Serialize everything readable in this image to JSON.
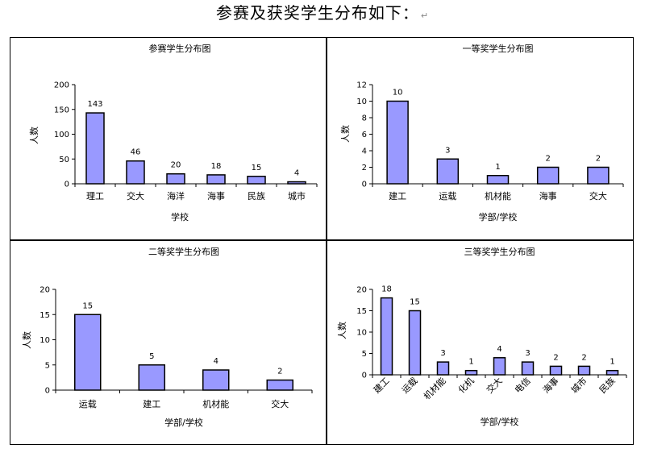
{
  "page": {
    "heading": "参赛及获奖学生分布如下：",
    "return_mark": "↵"
  },
  "colors": {
    "bar_fill": "#9999ff",
    "bar_stroke": "#000000"
  },
  "chart_data": [
    {
      "type": "bar",
      "title": "参赛学生分布图",
      "xlabel": "学校",
      "ylabel": "人数",
      "categories": [
        "理工",
        "交大",
        "海洋",
        "海事",
        "民族",
        "城市"
      ],
      "values": [
        143,
        46,
        20,
        18,
        15,
        4
      ],
      "ylim": [
        0,
        200
      ],
      "yticks": [
        0,
        50,
        100,
        150,
        200
      ],
      "grid": false,
      "legend": "none"
    },
    {
      "type": "bar",
      "title": "一等奖学生分布图",
      "xlabel": "学部/学校",
      "ylabel": "人数",
      "categories": [
        "建工",
        "运载",
        "机材能",
        "海事",
        "交大"
      ],
      "values": [
        10,
        3,
        1,
        2,
        2
      ],
      "ylim": [
        0,
        12
      ],
      "yticks": [
        0,
        2,
        4,
        6,
        8,
        10,
        12
      ],
      "grid": false,
      "legend": "none"
    },
    {
      "type": "bar",
      "title": "二等奖学生分布图",
      "xlabel": "学部/学校",
      "ylabel": "人数",
      "categories": [
        "运载",
        "建工",
        "机材能",
        "交大"
      ],
      "values": [
        15,
        5,
        4,
        2
      ],
      "ylim": [
        0,
        20
      ],
      "yticks": [
        0,
        5,
        10,
        15,
        20
      ],
      "grid": false,
      "legend": "none"
    },
    {
      "type": "bar",
      "title": "三等奖学生分布图",
      "xlabel": "学部/学校",
      "ylabel": "人数",
      "categories": [
        "建工",
        "运载",
        "机材能",
        "化机",
        "交大",
        "电信",
        "海事",
        "城市",
        "民族"
      ],
      "values": [
        18,
        15,
        3,
        1,
        4,
        3,
        2,
        2,
        1
      ],
      "ylim": [
        0,
        20
      ],
      "yticks": [
        0,
        5,
        10,
        15,
        20
      ],
      "grid": false,
      "legend": "none"
    }
  ]
}
